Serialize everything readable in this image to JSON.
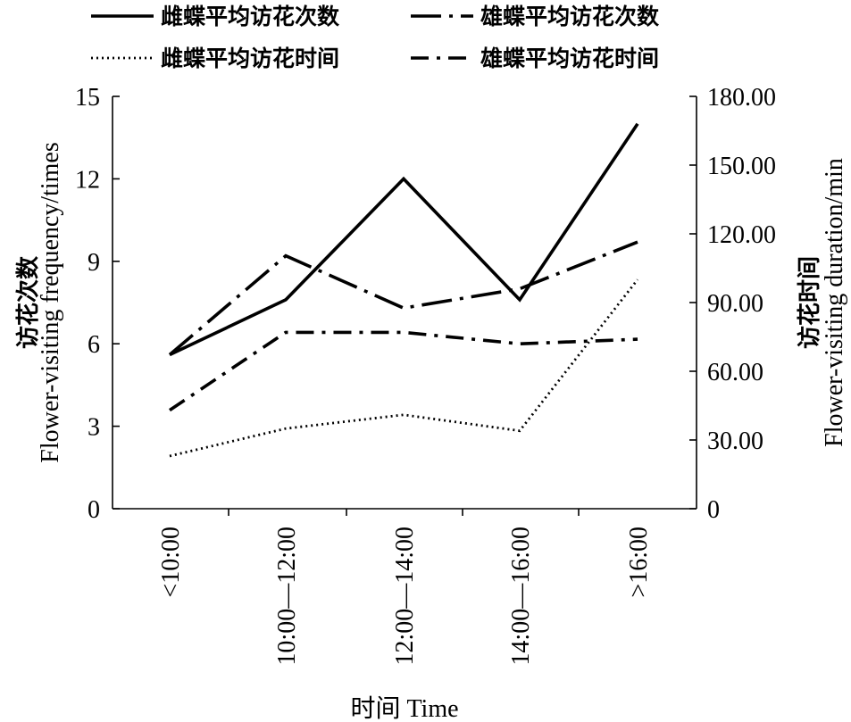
{
  "chart_data": {
    "type": "line",
    "categories": [
      "<10:00",
      "10:00—12:00",
      "12:00—14:00",
      "14:00—16:00",
      ">16:00"
    ],
    "xlabel": "时间 Time",
    "ylabel_left_cn": "访花次数",
    "ylabel_left_en": "Flower-visiting frequency/times",
    "ylabel_right_cn": "访花时间",
    "ylabel_right_en": "Flower-visiting duration/min",
    "ylim_left": [
      0,
      15
    ],
    "ylim_right": [
      0,
      180
    ],
    "left_ticks": [
      "0",
      "3",
      "6",
      "9",
      "12",
      "15"
    ],
    "right_ticks": [
      "0",
      "30.00",
      "60.00",
      "90.00",
      "120.00",
      "150.00",
      "180.00"
    ],
    "grid": false,
    "legend_position": "top",
    "series": [
      {
        "name": "雌蝶平均访花次数",
        "axis": "left",
        "style": "solid",
        "values": [
          5.6,
          7.6,
          12.0,
          7.6,
          14.0
        ]
      },
      {
        "name": "雄蝶平均访花次数",
        "axis": "left",
        "style": "longdashdot",
        "values": [
          5.6,
          9.2,
          7.3,
          8.0,
          9.7
        ]
      },
      {
        "name": "雌蝶平均访花时间",
        "axis": "right",
        "style": "dotted",
        "values": [
          23,
          35,
          41,
          34,
          100
        ]
      },
      {
        "name": "雄蝶平均访花时间",
        "axis": "right",
        "style": "dashdot",
        "values": [
          43,
          77,
          77,
          72,
          74
        ]
      }
    ]
  }
}
